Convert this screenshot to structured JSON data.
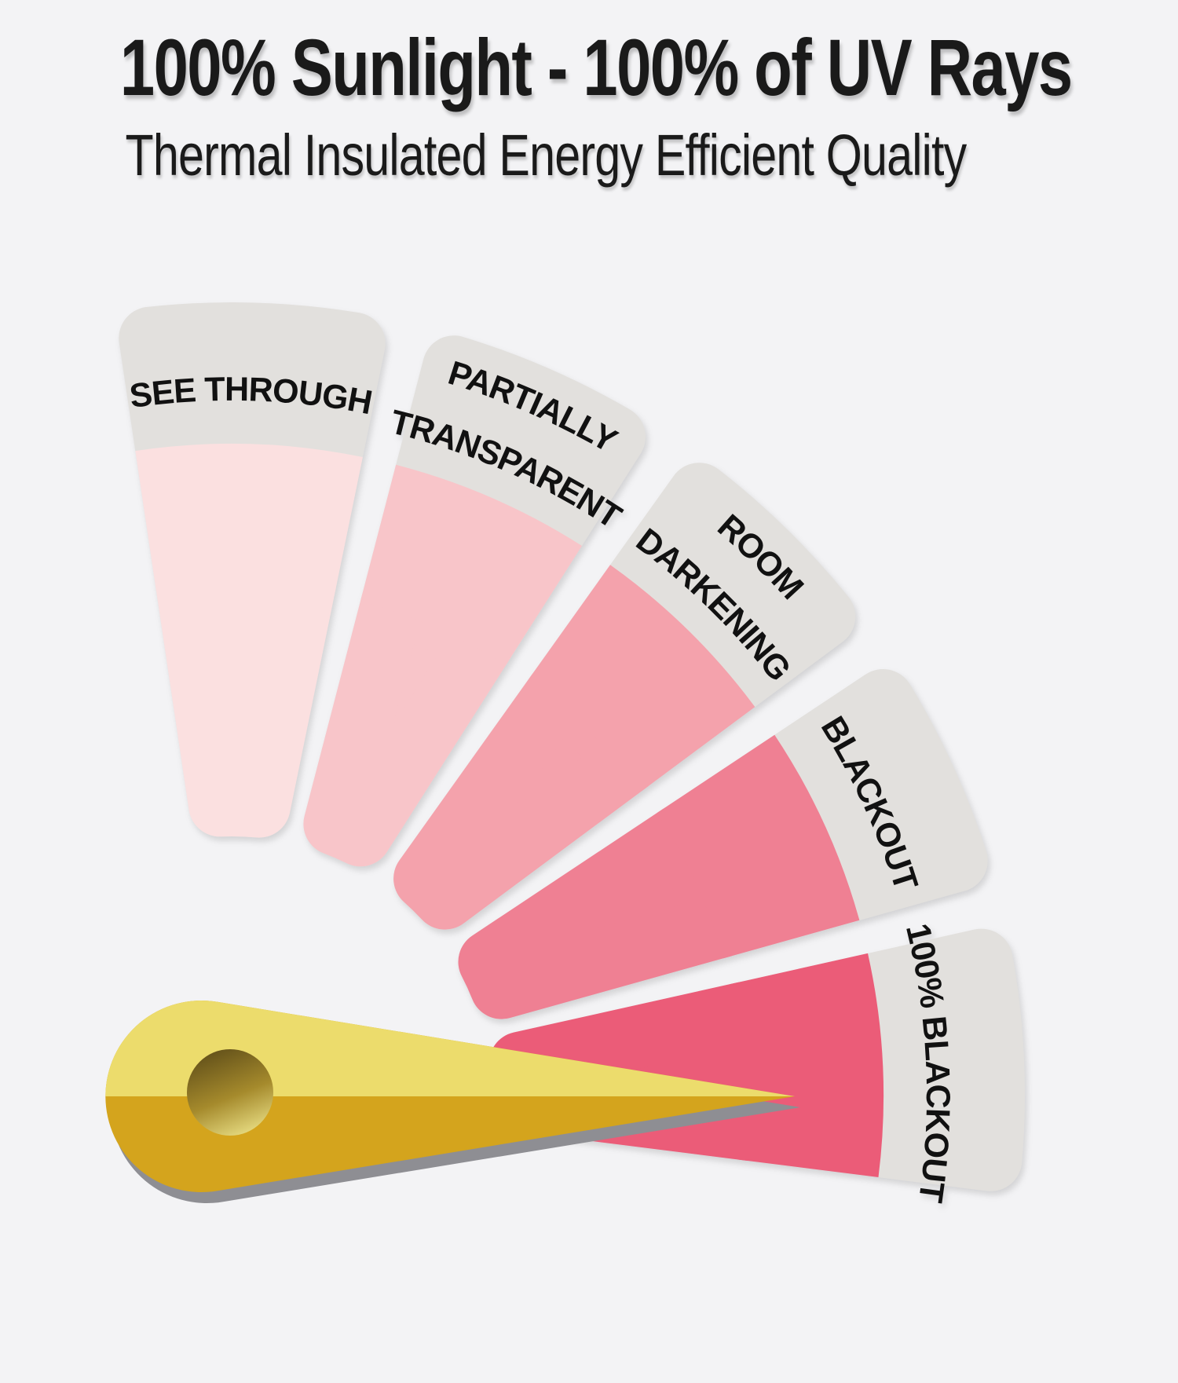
{
  "background": "#f3f3f5",
  "header": {
    "title": "100% Sunlight - 100% of UV Rays",
    "subtitle": "Thermal Insulated Energy Efficient Quality",
    "text_color": "#1a1a1a"
  },
  "gauge": {
    "type": "gauge",
    "description": "Fan gauge of window-covering opacity levels, needle pointing at 100% BLACKOUT",
    "pointer_target": "100% BLACKOUT",
    "band_color": "#e2e0dd",
    "label_color": "#111111",
    "segments": [
      {
        "label": "SEE THROUGH",
        "lines": [
          "SEE THROUGH"
        ],
        "color": "#fbe0e0"
      },
      {
        "label": "PARTIALLY TRANSPARENT",
        "lines": [
          "PARTIALLY",
          "TRANSPARENT"
        ],
        "color": "#f8c5c9"
      },
      {
        "label": "ROOM DARKENING",
        "lines": [
          "ROOM",
          "DARKENING"
        ],
        "color": "#f4a2ac"
      },
      {
        "label": "BLACKOUT",
        "lines": [
          "BLACKOUT"
        ],
        "color": "#ef8093"
      },
      {
        "label": "100% BLACKOUT",
        "lines": [
          "100% BLACKOUT"
        ],
        "color": "#eb5c78"
      }
    ],
    "needle": {
      "top_color": "#ecdc6c",
      "bottom_color": "#d4a41d",
      "shadow_color": "#8e8e93",
      "hub_dark": "#63511a",
      "hub_mid": "#a58a2c",
      "hub_light": "#e7dc82"
    }
  }
}
